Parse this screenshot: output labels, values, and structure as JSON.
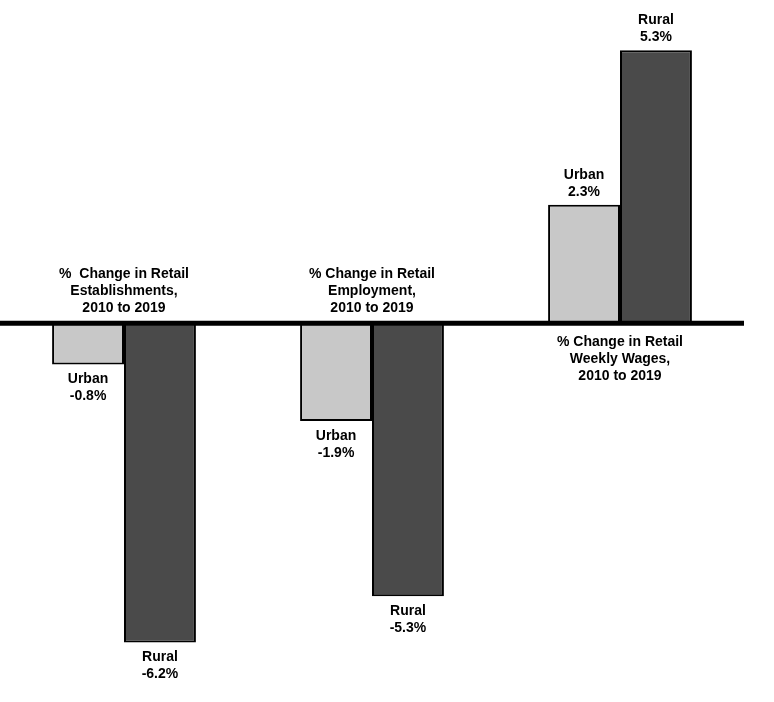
{
  "chart_data": {
    "type": "bar",
    "categories": [
      "%  Change in Retail\nEstablishments,\n2010 to 2019",
      "% Change in Retail\nEmployment,\n2010 to 2019",
      "% Change in Retail\nWeekly Wages,\n2010 to 2019"
    ],
    "series": [
      {
        "name": "Urban",
        "color": "#c8c8c8",
        "values": [
          -0.8,
          -1.9,
          2.3
        ],
        "value_labels": [
          "-0.8%",
          "-1.9%",
          "2.3%"
        ]
      },
      {
        "name": "Rural",
        "color": "#4a4a4a",
        "values": [
          -6.2,
          -5.3,
          5.3
        ],
        "value_labels": [
          "-6.2%",
          "-5.3%",
          "5.3%"
        ]
      }
    ],
    "ylim": [
      -6.5,
      5.5
    ],
    "grid": false,
    "data_labels": true,
    "tick_labels": false
  }
}
